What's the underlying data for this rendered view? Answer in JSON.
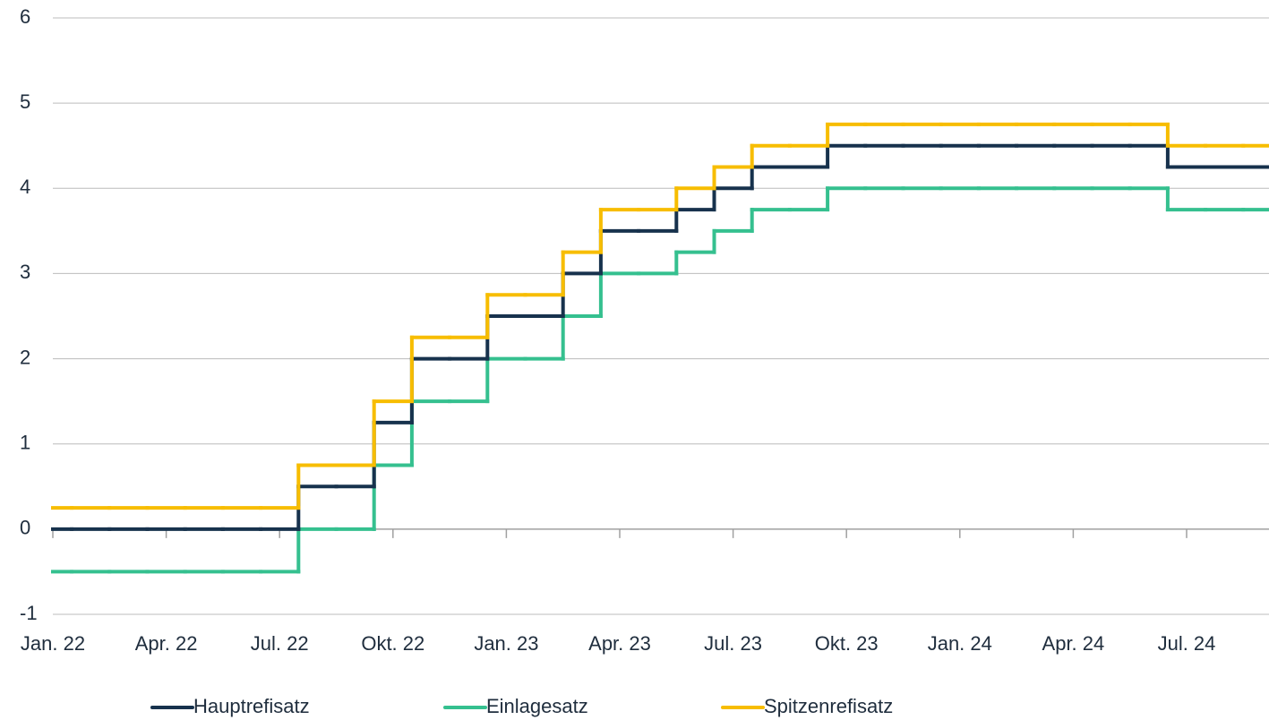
{
  "chart_data": {
    "type": "step",
    "categories": [
      "Jan. 22",
      null,
      null,
      "Apr. 22",
      null,
      null,
      "Jul. 22",
      null,
      null,
      "Okt. 22",
      null,
      null,
      "Jan. 23",
      null,
      null,
      "Apr. 23",
      null,
      null,
      "Jul. 23",
      null,
      null,
      "Okt. 23",
      null,
      null,
      "Jan. 24",
      null,
      null,
      "Apr. 24",
      null,
      null,
      "Jul. 24",
      null,
      null
    ],
    "series": [
      {
        "name": "Hauptrefisatz",
        "color": "#17324d",
        "values": [
          0,
          0,
          0,
          0,
          0,
          0,
          0,
          0.5,
          0.5,
          1.25,
          2,
          2,
          2.5,
          2.5,
          3,
          3.5,
          3.5,
          3.75,
          4,
          4.25,
          4.25,
          4.5,
          4.5,
          4.5,
          4.5,
          4.5,
          4.5,
          4.5,
          4.5,
          4.5,
          4.25,
          4.25,
          4.25
        ]
      },
      {
        "name": "Einlagesatz",
        "color": "#35c08f",
        "values": [
          -0.5,
          -0.5,
          -0.5,
          -0.5,
          -0.5,
          -0.5,
          -0.5,
          0,
          0,
          0.75,
          1.5,
          1.5,
          2,
          2,
          2.5,
          3,
          3,
          3.25,
          3.5,
          3.75,
          3.75,
          4,
          4,
          4,
          4,
          4,
          4,
          4,
          4,
          4,
          3.75,
          3.75,
          3.75
        ]
      },
      {
        "name": "Spitzenrefisatz",
        "color": "#f7bd00",
        "values": [
          0.25,
          0.25,
          0.25,
          0.25,
          0.25,
          0.25,
          0.25,
          0.75,
          0.75,
          1.5,
          2.25,
          2.25,
          2.75,
          2.75,
          3.25,
          3.75,
          3.75,
          4,
          4.25,
          4.5,
          4.5,
          4.75,
          4.75,
          4.75,
          4.75,
          4.75,
          4.75,
          4.75,
          4.75,
          4.75,
          4.5,
          4.5,
          4.5
        ]
      }
    ],
    "ylim": [
      -1,
      6
    ],
    "yticks": [
      -1,
      0,
      1,
      2,
      3,
      4,
      5,
      6
    ],
    "grid": true,
    "legend": "bottom"
  }
}
